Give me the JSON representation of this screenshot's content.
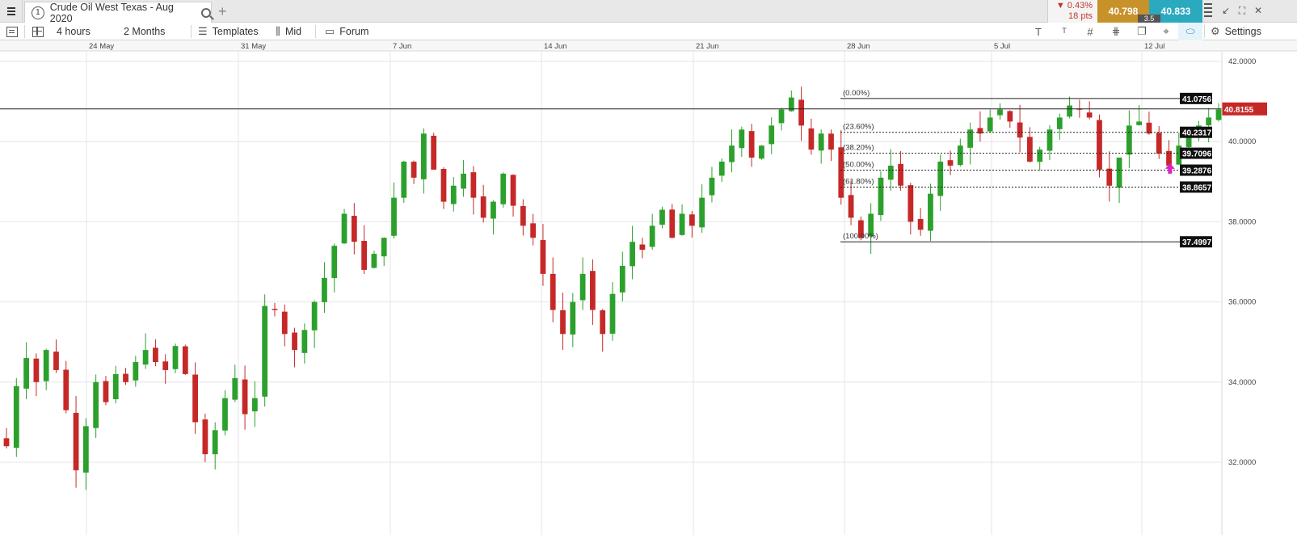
{
  "tabbar": {
    "tab_number": "1",
    "instrument": "Crude Oil West Texas - Aug 2020",
    "add_tab": "+",
    "change_pct": "▼ 0.43%",
    "change_pts": "18 pts",
    "sell_price": "40.798",
    "buy_price": "40.833",
    "spread": "3.5",
    "window_controls": [
      "↙",
      "⛶",
      "✕"
    ]
  },
  "toolbar": {
    "interval": "4 hours",
    "range": "2 Months",
    "templates": "Templates",
    "price_type": "Mid",
    "forum": "Forum",
    "settings": "Settings",
    "icons": [
      "text-tool-icon",
      "grid-icon",
      "drawing-tools-icon",
      "layers-icon",
      "crosshair-icon",
      "label-icon"
    ]
  },
  "chart_data": {
    "type": "candlestick",
    "instrument": "Crude Oil West Texas - Aug 2020",
    "interval": "4 hours",
    "x_tick_labels": [
      "24 May",
      "31 May",
      "7 Jun",
      "14 Jun",
      "21 Jun",
      "28 Jun",
      "5 Jul",
      "12 Jul"
    ],
    "y_tick_labels": [
      "42.0000",
      "40.0000",
      "38.0000",
      "36.0000",
      "34.0000",
      "32.0000"
    ],
    "ylim": [
      30.5,
      42.2
    ],
    "grid": true,
    "current_price": "40.8155",
    "current_price_value": 40.8155,
    "candle_colors": {
      "up": "#2ca02c",
      "down": "#c62828"
    },
    "close_path": [
      32.4,
      33.9,
      34.6,
      34.0,
      34.8,
      34.3,
      33.3,
      31.8,
      32.9,
      34.0,
      33.5,
      34.2,
      34.0,
      34.5,
      34.8,
      34.5,
      34.3,
      34.9,
      34.2,
      33.0,
      32.2,
      32.8,
      33.6,
      34.1,
      33.2,
      33.6,
      35.9,
      35.8,
      35.2,
      34.8,
      35.3,
      36.0,
      36.6,
      37.4,
      38.2,
      37.5,
      36.8,
      37.2,
      37.6,
      38.6,
      39.5,
      39.1,
      40.2,
      39.3,
      38.5,
      38.9,
      39.2,
      38.6,
      38.1,
      38.5,
      39.2,
      38.4,
      37.9,
      37.6,
      36.7,
      35.8,
      35.2,
      36.0,
      36.7,
      35.8,
      35.2,
      36.2,
      36.9,
      37.5,
      37.3,
      37.9,
      38.3,
      37.6,
      38.2,
      37.9,
      38.6,
      39.1,
      39.5,
      39.9,
      40.3,
      39.6,
      39.9,
      40.4,
      40.8,
      41.1,
      40.4,
      39.8,
      40.2,
      39.8,
      38.6,
      38.1,
      37.6,
      38.2,
      39.1,
      39.4,
      38.9,
      38.0,
      37.8,
      38.7,
      39.5,
      39.4,
      39.9,
      40.3,
      40.2,
      40.6,
      40.8,
      40.5,
      40.1,
      39.5,
      39.8,
      40.3,
      40.6,
      40.9,
      40.8,
      40.6,
      39.3,
      38.9,
      39.6,
      40.4,
      40.5,
      40.2,
      39.7,
      39.4,
      39.9,
      40.3,
      40.4,
      40.6,
      40.8
    ],
    "fibonacci": {
      "start_date": "28 Jun",
      "end_date": "15 Jul",
      "levels": [
        {
          "label": "(0.00%)",
          "price": 41.0756,
          "price_label": "41.0756"
        },
        {
          "label": "(23.60%)",
          "price": 40.2317,
          "price_label": "40.2317"
        },
        {
          "label": "(38.20%)",
          "price": 39.7096,
          "price_label": "39.7096"
        },
        {
          "label": "(50.00%)",
          "price": 39.2876,
          "price_label": "39.2876"
        },
        {
          "label": "(61.80%)",
          "price": 38.8657,
          "price_label": "38.8657"
        },
        {
          "label": "(100.00%)",
          "price": 37.4997,
          "price_label": "37.4997"
        }
      ]
    },
    "markers": [
      {
        "type": "up-arrow",
        "color": "#e020c0",
        "date": "13 Jul",
        "price": 39.3
      }
    ]
  }
}
